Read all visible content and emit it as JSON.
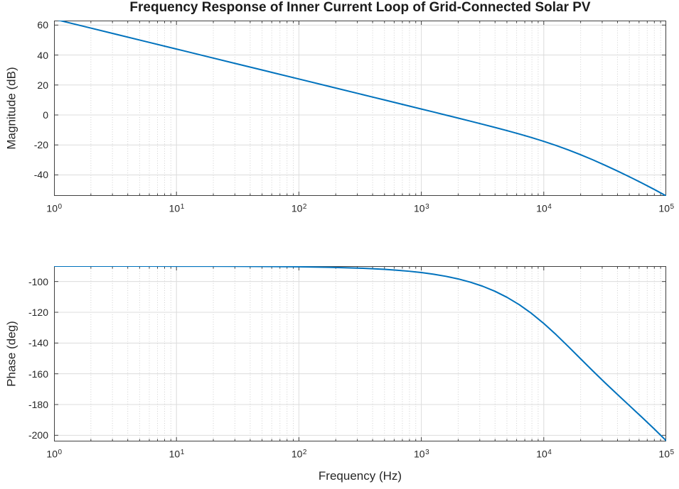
{
  "figure": {
    "title": "Frequency Response of Inner Current Loop of Grid-Connected Solar PV",
    "xlabel": "Frequency (Hz)",
    "colors": {
      "line": "#0072BD",
      "axis": "#404040",
      "major_grid": "#DCDCDC",
      "minor_grid": "#CFCFCF",
      "text": "#262626",
      "title_text": "#1C1C1C",
      "background": "#FFFFFF"
    }
  },
  "chart_data": [
    {
      "type": "line",
      "name": "magnitude-response",
      "title": "Frequency Response of Inner Current Loop of Grid-Connected Solar PV",
      "xlabel": "Frequency (Hz)",
      "ylabel": "Magnitude (dB)",
      "xscale": "log10",
      "grid": "on",
      "legend": "none",
      "xlim_log10": [
        0,
        5
      ],
      "ylim": [
        -54,
        63
      ],
      "yticks": [
        60,
        40,
        20,
        0,
        -20,
        -40
      ],
      "xticks_log10": [
        0,
        1,
        2,
        3,
        4,
        5
      ],
      "xtick_base": "10",
      "series": [
        {
          "name": "magnitude_dB",
          "x_log10": [
            0,
            0.25,
            0.5,
            0.75,
            1,
            1.25,
            1.5,
            1.75,
            2,
            2.25,
            2.5,
            2.6,
            2.7,
            2.8,
            2.9,
            3,
            3.1,
            3.2,
            3.3,
            3.4,
            3.5,
            3.6,
            3.7,
            3.8,
            3.9,
            4,
            4.1,
            4.2,
            4.3,
            4.4,
            4.5,
            4.6,
            4.7,
            4.8,
            4.9,
            5
          ],
          "y": [
            64,
            59,
            54,
            49,
            44,
            39,
            34,
            29,
            24,
            19,
            14,
            12,
            10,
            7.99,
            5.99,
            3.98,
            1.97,
            -0.05,
            -2.08,
            -4.12,
            -6.19,
            -8.3,
            -10.46,
            -12.71,
            -15.08,
            -17.61,
            -20.34,
            -23.3,
            -26.49,
            -29.91,
            -33.53,
            -37.32,
            -41.26,
            -45.35,
            -49.59,
            -54.01
          ]
        }
      ]
    },
    {
      "type": "line",
      "name": "phase-response",
      "xlabel": "Frequency (Hz)",
      "ylabel": "Phase (deg)",
      "xscale": "log10",
      "grid": "on",
      "legend": "none",
      "xlim_log10": [
        0,
        5
      ],
      "ylim": [
        -204,
        -90
      ],
      "yticks": [
        -100,
        -120,
        -140,
        -160,
        -180,
        -200
      ],
      "xticks_log10": [
        0,
        1,
        2,
        3,
        4,
        5
      ],
      "xtick_base": "10",
      "series": [
        {
          "name": "phase_deg",
          "x_log10": [
            0,
            0.25,
            0.5,
            0.75,
            1,
            1.25,
            1.5,
            1.75,
            2,
            2.25,
            2.5,
            2.6,
            2.7,
            2.8,
            2.9,
            3,
            3.1,
            3.2,
            3.3,
            3.4,
            3.5,
            3.6,
            3.7,
            3.8,
            3.9,
            4,
            4.1,
            4.2,
            4.3,
            4.4,
            4.5,
            4.6,
            4.7,
            4.8,
            4.9,
            5
          ],
          "y": [
            -90,
            -90.01,
            -90.01,
            -90.02,
            -90.04,
            -90.07,
            -90.13,
            -90.23,
            -90.42,
            -90.74,
            -91.32,
            -91.66,
            -92.09,
            -92.63,
            -93.32,
            -94.17,
            -95.25,
            -96.6,
            -98.29,
            -100.41,
            -103.04,
            -106.29,
            -110.27,
            -115.07,
            -120.74,
            -127.27,
            -134.5,
            -142.24,
            -150.18,
            -158.07,
            -165.8,
            -173.32,
            -180.73,
            -188.15,
            -195.7,
            -203.48
          ]
        }
      ]
    }
  ]
}
